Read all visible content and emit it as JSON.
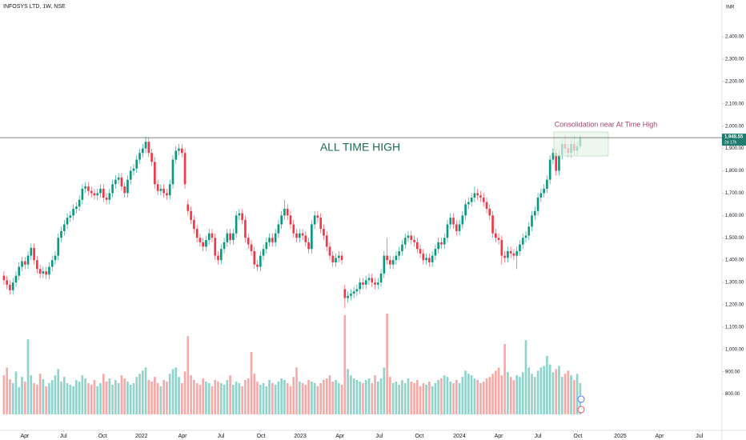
{
  "header": "INFOSYS LTD, 1W, NSE",
  "currency": "INR",
  "chart_data": {
    "type": "candlestick",
    "annotations": [
      "ALL TIME HIGH",
      "Consolidation near At Time High"
    ],
    "last_price": {
      "value": 1948.55,
      "label": "1,948.55"
    },
    "countdown": "2d 17h",
    "up_color": "#089981",
    "down_color": "#f23645",
    "volume_up_color": "#8fd3cb",
    "volume_down_color": "#f7a9a8",
    "grid": false,
    "xlim": [
      -1.3,
      238
    ],
    "ylim": [
      641,
      2565
    ],
    "vlim": [
      0,
      130
    ],
    "xticks": [
      {
        "value": 6.9,
        "label": "Apr"
      },
      {
        "value": 19.7,
        "label": "Jul"
      },
      {
        "value": 32.7,
        "label": "Oct"
      },
      {
        "value": 45.6,
        "label": "2022"
      },
      {
        "value": 59.2,
        "label": "Apr"
      },
      {
        "value": 71.9,
        "label": "Jul"
      },
      {
        "value": 85.2,
        "label": "Oct"
      },
      {
        "value": 98.2,
        "label": "2023"
      },
      {
        "value": 111.4,
        "label": "Apr"
      },
      {
        "value": 124.4,
        "label": "Jul"
      },
      {
        "value": 137.7,
        "label": "Oct"
      },
      {
        "value": 151,
        "label": "2024"
      },
      {
        "value": 164,
        "label": "Apr"
      },
      {
        "value": 177,
        "label": "Jul"
      },
      {
        "value": 190.2,
        "label": "Oct"
      },
      {
        "value": 204.3,
        "label": "2025"
      },
      {
        "value": 217.3,
        "label": "Apr"
      },
      {
        "value": 230.5,
        "label": "Jul"
      }
    ],
    "yticks": [
      {
        "value": 800,
        "label": "800.00"
      },
      {
        "value": 900,
        "label": "900.00"
      },
      {
        "value": 1000,
        "label": "1,000.00"
      },
      {
        "value": 1100,
        "label": "1,100.00"
      },
      {
        "value": 1200,
        "label": "1,200.00"
      },
      {
        "value": 1300,
        "label": "1,300.00"
      },
      {
        "value": 1400,
        "label": "1,400.00"
      },
      {
        "value": 1500,
        "label": "1,500.00"
      },
      {
        "value": 1600,
        "label": "1,600.00"
      },
      {
        "value": 1700,
        "label": "1,700.00"
      },
      {
        "value": 1800,
        "label": "1,800.00"
      },
      {
        "value": 1900,
        "label": "1,900.00"
      },
      {
        "value": 2000,
        "label": "2,000.00"
      },
      {
        "value": 2100,
        "label": "2,100.00"
      },
      {
        "value": 2200,
        "label": "2,200.00"
      },
      {
        "value": 2300,
        "label": "2,300.00"
      },
      {
        "value": 2400,
        "label": "2,400.00"
      }
    ],
    "open": [
      1330,
      1310,
      1290,
      1265,
      1300,
      1330,
      1370,
      1395,
      1380,
      1420,
      1455,
      1400,
      1360,
      1340,
      1350,
      1335,
      1370,
      1400,
      1420,
      1500,
      1530,
      1560,
      1590,
      1600,
      1630,
      1640,
      1670,
      1720,
      1730,
      1710,
      1700,
      1690,
      1700,
      1720,
      1680,
      1670,
      1700,
      1740,
      1760,
      1770,
      1730,
      1700,
      1760,
      1800,
      1810,
      1850,
      1880,
      1900,
      1930,
      1880,
      1840,
      1740,
      1710,
      1720,
      1700,
      1690,
      1740,
      1850,
      1890,
      1900,
      1880,
      1650,
      1620,
      1580,
      1540,
      1500,
      1480,
      1460,
      1490,
      1520,
      1500,
      1420,
      1400,
      1450,
      1480,
      1520,
      1490,
      1520,
      1600,
      1610,
      1580,
      1500,
      1470,
      1440,
      1380,
      1370,
      1420,
      1450,
      1480,
      1500,
      1480,
      1520,
      1560,
      1600,
      1630,
      1600,
      1560,
      1520,
      1500,
      1520,
      1510,
      1480,
      1450,
      1560,
      1600,
      1590,
      1540,
      1510,
      1460,
      1420,
      1390,
      1410,
      1420,
      1270,
      1230,
      1240,
      1250,
      1260,
      1270,
      1300,
      1290,
      1310,
      1320,
      1300,
      1290,
      1300,
      1340,
      1420,
      1400,
      1380,
      1400,
      1420,
      1440,
      1470,
      1500,
      1510,
      1490,
      1480,
      1450,
      1430,
      1400,
      1410,
      1390,
      1420,
      1450,
      1480,
      1470,
      1500,
      1560,
      1590,
      1560,
      1530,
      1560,
      1600,
      1650,
      1660,
      1680,
      1700,
      1690,
      1680,
      1660,
      1630,
      1600,
      1520,
      1500,
      1490,
      1420,
      1410,
      1440,
      1430,
      1420,
      1440,
      1470,
      1500,
      1510,
      1550,
      1600,
      1620,
      1680,
      1700,
      1720,
      1760,
      1850,
      1880,
      1800,
      1870,
      1920,
      1900,
      1880,
      1920,
      1890,
      1910
    ],
    "high": [
      1350,
      1330,
      1310,
      1320,
      1350,
      1390,
      1415,
      1415,
      1440,
      1475,
      1475,
      1420,
      1380,
      1370,
      1370,
      1390,
      1420,
      1440,
      1520,
      1550,
      1580,
      1610,
      1620,
      1650,
      1660,
      1690,
      1740,
      1750,
      1750,
      1730,
      1720,
      1720,
      1740,
      1740,
      1700,
      1720,
      1760,
      1780,
      1790,
      1790,
      1750,
      1780,
      1820,
      1830,
      1870,
      1900,
      1920,
      1953,
      1950,
      1900,
      1860,
      1760,
      1740,
      1740,
      1720,
      1760,
      1870,
      1910,
      1920,
      1920,
      1900,
      1670,
      1640,
      1600,
      1560,
      1520,
      1500,
      1510,
      1540,
      1540,
      1520,
      1440,
      1470,
      1500,
      1540,
      1540,
      1540,
      1620,
      1630,
      1630,
      1600,
      1520,
      1490,
      1460,
      1400,
      1440,
      1470,
      1500,
      1520,
      1520,
      1540,
      1580,
      1620,
      1670,
      1650,
      1620,
      1580,
      1540,
      1540,
      1540,
      1530,
      1500,
      1580,
      1620,
      1620,
      1610,
      1560,
      1530,
      1480,
      1440,
      1430,
      1440,
      1440,
      1290,
      1260,
      1270,
      1280,
      1290,
      1320,
      1320,
      1330,
      1340,
      1340,
      1320,
      1320,
      1360,
      1440,
      1500,
      1420,
      1420,
      1440,
      1460,
      1490,
      1520,
      1530,
      1530,
      1510,
      1500,
      1470,
      1450,
      1430,
      1430,
      1440,
      1470,
      1500,
      1500,
      1520,
      1580,
      1610,
      1610,
      1580,
      1580,
      1620,
      1670,
      1680,
      1700,
      1730,
      1720,
      1710,
      1700,
      1680,
      1650,
      1620,
      1540,
      1520,
      1510,
      1440,
      1460,
      1460,
      1450,
      1460,
      1490,
      1520,
      1530,
      1570,
      1620,
      1640,
      1700,
      1720,
      1740,
      1780,
      1870,
      1900,
      1900,
      1890,
      1940,
      1960,
      1920,
      1940,
      1960,
      1930,
      1960
    ],
    "low": [
      1290,
      1270,
      1245,
      1245,
      1280,
      1310,
      1350,
      1360,
      1360,
      1400,
      1380,
      1340,
      1320,
      1320,
      1315,
      1315,
      1350,
      1380,
      1400,
      1480,
      1510,
      1540,
      1570,
      1580,
      1610,
      1620,
      1650,
      1700,
      1690,
      1680,
      1670,
      1670,
      1680,
      1660,
      1650,
      1650,
      1680,
      1720,
      1740,
      1710,
      1680,
      1680,
      1740,
      1780,
      1790,
      1830,
      1860,
      1880,
      1860,
      1820,
      1720,
      1690,
      1690,
      1680,
      1670,
      1670,
      1720,
      1830,
      1870,
      1860,
      1720,
      1600,
      1560,
      1520,
      1480,
      1460,
      1440,
      1440,
      1470,
      1480,
      1400,
      1380,
      1380,
      1430,
      1460,
      1470,
      1470,
      1500,
      1580,
      1560,
      1480,
      1450,
      1420,
      1360,
      1350,
      1350,
      1400,
      1430,
      1460,
      1460,
      1460,
      1500,
      1540,
      1580,
      1580,
      1540,
      1500,
      1480,
      1480,
      1490,
      1460,
      1430,
      1430,
      1540,
      1570,
      1520,
      1490,
      1440,
      1400,
      1370,
      1370,
      1390,
      1380,
      1185,
      1210,
      1220,
      1230,
      1240,
      1250,
      1270,
      1270,
      1290,
      1280,
      1270,
      1270,
      1280,
      1320,
      1380,
      1360,
      1360,
      1380,
      1400,
      1420,
      1450,
      1480,
      1470,
      1460,
      1430,
      1410,
      1380,
      1380,
      1370,
      1370,
      1400,
      1430,
      1450,
      1450,
      1480,
      1540,
      1540,
      1510,
      1510,
      1540,
      1580,
      1630,
      1640,
      1660,
      1670,
      1660,
      1640,
      1610,
      1580,
      1500,
      1480,
      1470,
      1380,
      1390,
      1390,
      1410,
      1400,
      1360,
      1420,
      1450,
      1480,
      1490,
      1530,
      1580,
      1600,
      1660,
      1680,
      1700,
      1740,
      1830,
      1780,
      1780,
      1850,
      1880,
      1860,
      1860,
      1870,
      1870,
      1900
    ],
    "close": [
      1310,
      1290,
      1265,
      1300,
      1330,
      1370,
      1395,
      1380,
      1420,
      1455,
      1400,
      1360,
      1340,
      1350,
      1335,
      1370,
      1400,
      1420,
      1500,
      1530,
      1560,
      1590,
      1600,
      1630,
      1640,
      1670,
      1720,
      1730,
      1710,
      1700,
      1690,
      1700,
      1720,
      1680,
      1670,
      1700,
      1740,
      1760,
      1770,
      1730,
      1700,
      1760,
      1800,
      1810,
      1850,
      1880,
      1900,
      1930,
      1880,
      1840,
      1740,
      1710,
      1720,
      1700,
      1690,
      1740,
      1850,
      1890,
      1900,
      1880,
      1740,
      1620,
      1580,
      1540,
      1500,
      1480,
      1460,
      1490,
      1520,
      1500,
      1420,
      1400,
      1450,
      1480,
      1520,
      1490,
      1520,
      1600,
      1610,
      1580,
      1500,
      1470,
      1440,
      1380,
      1370,
      1420,
      1450,
      1480,
      1500,
      1480,
      1520,
      1560,
      1600,
      1630,
      1600,
      1560,
      1520,
      1500,
      1520,
      1510,
      1480,
      1450,
      1560,
      1600,
      1590,
      1540,
      1510,
      1460,
      1420,
      1390,
      1410,
      1420,
      1400,
      1230,
      1240,
      1250,
      1260,
      1270,
      1300,
      1290,
      1310,
      1320,
      1300,
      1290,
      1300,
      1340,
      1420,
      1400,
      1380,
      1400,
      1420,
      1440,
      1470,
      1500,
      1510,
      1490,
      1480,
      1450,
      1430,
      1400,
      1410,
      1390,
      1420,
      1450,
      1480,
      1470,
      1500,
      1560,
      1590,
      1560,
      1530,
      1560,
      1600,
      1650,
      1660,
      1680,
      1700,
      1690,
      1680,
      1660,
      1630,
      1600,
      1520,
      1500,
      1490,
      1420,
      1410,
      1440,
      1430,
      1420,
      1440,
      1470,
      1500,
      1510,
      1550,
      1600,
      1620,
      1680,
      1700,
      1720,
      1760,
      1850,
      1880,
      1800,
      1870,
      1920,
      1900,
      1880,
      1920,
      1890,
      1910,
      1948.55
    ],
    "volume": [
      50,
      60,
      45,
      40,
      55,
      35,
      48,
      42,
      96,
      50,
      40,
      38,
      52,
      45,
      36,
      40,
      44,
      50,
      58,
      42,
      48,
      40,
      38,
      36,
      44,
      42,
      50,
      46,
      40,
      38,
      44,
      36,
      40,
      52,
      42,
      46,
      38,
      44,
      40,
      50,
      46,
      42,
      38,
      40,
      48,
      52,
      56,
      60,
      44,
      42,
      48,
      40,
      36,
      44,
      42,
      52,
      58,
      60,
      48,
      40,
      55,
      100,
      50,
      44,
      40,
      38,
      46,
      42,
      40,
      36,
      44,
      42,
      40,
      38,
      44,
      50,
      38,
      42,
      40,
      36,
      44,
      46,
      80,
      52,
      42,
      38,
      40,
      36,
      44,
      40,
      38,
      42,
      46,
      44,
      40,
      36,
      48,
      60,
      42,
      40,
      38,
      44,
      42,
      40,
      36,
      40,
      44,
      46,
      50,
      42,
      44,
      40,
      38,
      127,
      58,
      50,
      46,
      44,
      42,
      40,
      44,
      46,
      40,
      50,
      42,
      46,
      60,
      129,
      48,
      40,
      42,
      38,
      44,
      40,
      46,
      42,
      40,
      44,
      36,
      40,
      38,
      42,
      36,
      40,
      44,
      46,
      50,
      48,
      42,
      40,
      44,
      40,
      48,
      56,
      52,
      50,
      46,
      44,
      40,
      42,
      46,
      48,
      52,
      56,
      60,
      50,
      90,
      54,
      48,
      44,
      50,
      48,
      54,
      95,
      60,
      52,
      48,
      56,
      60,
      62,
      75,
      64,
      54,
      58,
      62,
      48,
      52,
      56,
      50,
      44,
      52,
      40
    ]
  }
}
